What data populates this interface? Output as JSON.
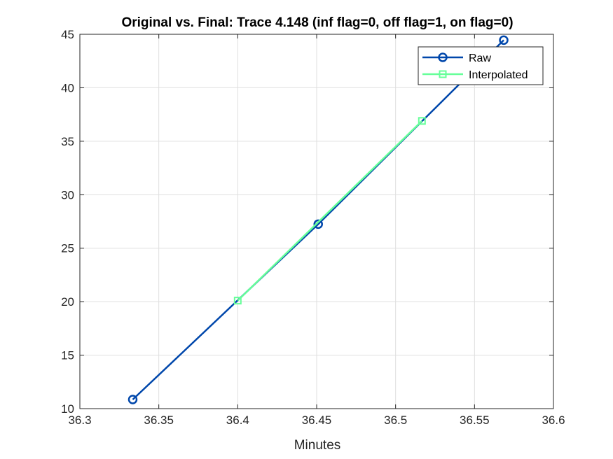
{
  "chart_data": {
    "type": "line",
    "title": "Original vs. Final: Trace 4.148 (inf flag=0, off flag=1, on flag=0)",
    "xlabel": "Minutes",
    "ylabel": "",
    "xlim": [
      36.3,
      36.6
    ],
    "ylim": [
      10,
      45
    ],
    "xticks": [
      36.3,
      36.35,
      36.4,
      36.45,
      36.5,
      36.55,
      36.6
    ],
    "xtick_labels": [
      "36.3",
      "36.35",
      "36.4",
      "36.45",
      "36.5",
      "36.55",
      "36.6"
    ],
    "yticks": [
      10,
      15,
      20,
      25,
      30,
      35,
      40,
      45
    ],
    "ytick_labels": [
      "10",
      "15",
      "20",
      "25",
      "30",
      "35",
      "40",
      "45"
    ],
    "grid": true,
    "legend_position": "top-right",
    "series": [
      {
        "name": "Raw",
        "color": "#0047ab",
        "marker": "circle",
        "x": [
          36.3335,
          36.451,
          36.5685
        ],
        "y": [
          10.85,
          27.25,
          44.45
        ]
      },
      {
        "name": "Interpolated",
        "color": "#66ff99",
        "marker": "square",
        "x": [
          36.4,
          36.5167
        ],
        "y": [
          20.1,
          36.9
        ]
      }
    ]
  }
}
